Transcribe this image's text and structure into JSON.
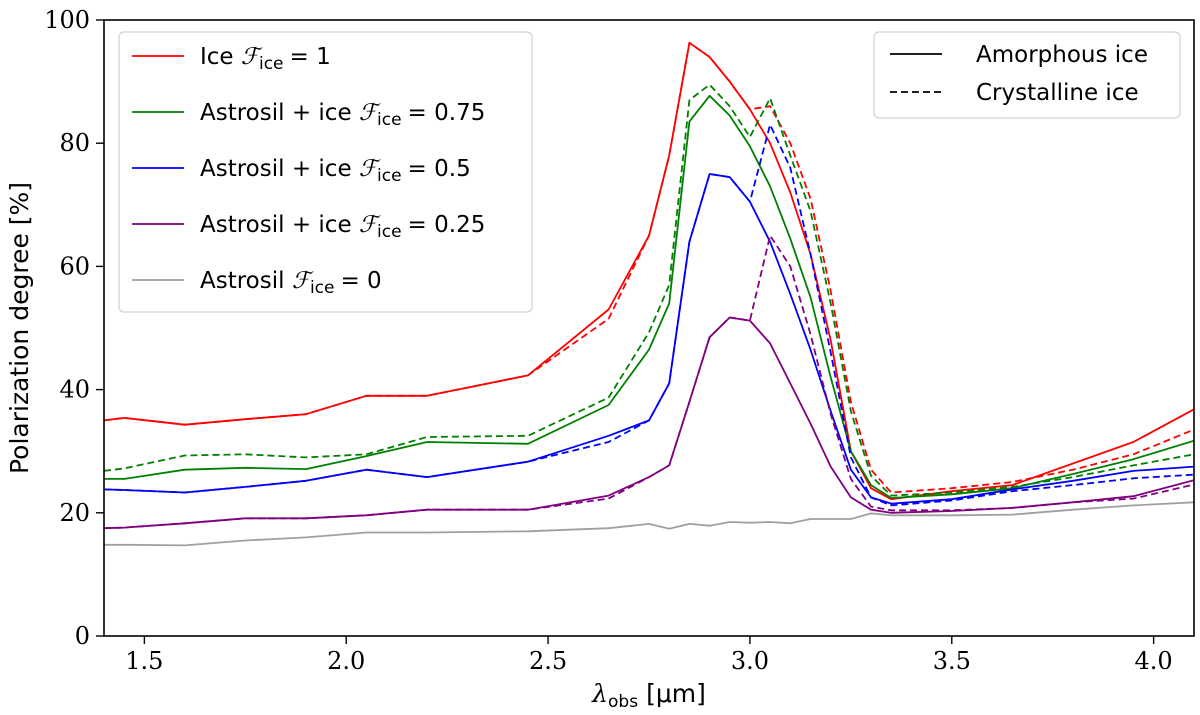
{
  "chart_data": {
    "type": "line",
    "xlabel": {
      "symbol": "λ",
      "sub": "obs",
      "unit": "[μm]"
    },
    "ylabel": "Polarization degree [%]",
    "xlim": [
      1.4,
      4.1
    ],
    "ylim": [
      0,
      100
    ],
    "xticks": [
      1.5,
      2.0,
      2.5,
      3.0,
      3.5,
      4.0
    ],
    "xtick_labels": [
      "1.5",
      "2.0",
      "2.5",
      "3.0",
      "3.5",
      "4.0"
    ],
    "yticks": [
      0,
      20,
      40,
      60,
      80,
      100
    ],
    "ytick_labels": [
      "0",
      "20",
      "40",
      "60",
      "80",
      "100"
    ],
    "style_legend": [
      {
        "label": "Amorphous ice",
        "dash": "solid"
      },
      {
        "label": "Crystalline ice",
        "dash": "dashed"
      }
    ],
    "series": [
      {
        "name": "Ice",
        "legend_prefix": "Ice",
        "legend_value": "= 1",
        "color": "#ff0000",
        "amorphous": {
          "x": [
            1.4,
            1.45,
            1.6,
            1.75,
            1.9,
            2.05,
            2.2,
            2.45,
            2.65,
            2.75,
            2.8,
            2.85,
            2.9,
            2.95,
            3.0,
            3.05,
            3.1,
            3.15,
            3.2,
            3.25,
            3.3,
            3.35,
            3.5,
            3.65,
            3.8,
            3.95,
            4.1
          ],
          "y": [
            35,
            35.4,
            34.3,
            35.2,
            36,
            39,
            39,
            42.3,
            53,
            65,
            78,
            96.3,
            94,
            90,
            85.5,
            80,
            72,
            62,
            48,
            30,
            24,
            22.2,
            23.5,
            24.5,
            28,
            31.5,
            36.8
          ]
        },
        "crystalline": {
          "x": [
            1.4,
            1.45,
            1.6,
            1.75,
            1.9,
            2.05,
            2.2,
            2.45,
            2.65,
            2.75,
            2.8,
            2.85,
            2.9,
            2.95,
            3.0,
            3.05,
            3.1,
            3.15,
            3.2,
            3.25,
            3.3,
            3.35,
            3.5,
            3.65,
            3.8,
            3.95,
            4.1
          ],
          "y": [
            35,
            35.4,
            34.3,
            35.2,
            36,
            39,
            39,
            42.3,
            51.5,
            65,
            78,
            96.3,
            94,
            90,
            85.5,
            86,
            80,
            71,
            56,
            38,
            27,
            23.3,
            24,
            25,
            27,
            29.5,
            33.5
          ]
        }
      },
      {
        "name": "Astrosil + ice 0.75",
        "legend_prefix": "Astrosil + ice",
        "legend_value": "= 0.75",
        "color": "#008000",
        "amorphous": {
          "x": [
            1.4,
            1.45,
            1.6,
            1.75,
            1.9,
            2.05,
            2.2,
            2.45,
            2.65,
            2.75,
            2.8,
            2.85,
            2.9,
            2.95,
            3.0,
            3.05,
            3.1,
            3.15,
            3.2,
            3.25,
            3.3,
            3.35,
            3.5,
            3.65,
            3.8,
            3.95,
            4.1
          ],
          "y": [
            25.5,
            25.5,
            27,
            27.3,
            27.1,
            29.2,
            31.5,
            31.2,
            37.5,
            46.5,
            54,
            83.5,
            87.7,
            84.5,
            79.5,
            73,
            64.5,
            55,
            42,
            30,
            24.5,
            22.4,
            23,
            24,
            26.3,
            28.7,
            31.7
          ]
        },
        "crystalline": {
          "x": [
            1.4,
            1.45,
            1.6,
            1.75,
            1.9,
            2.05,
            2.2,
            2.45,
            2.65,
            2.75,
            2.8,
            2.85,
            2.9,
            2.95,
            3.0,
            3.05,
            3.1,
            3.15,
            3.2,
            3.25,
            3.3,
            3.35,
            3.5,
            3.65,
            3.8,
            3.95,
            4.1
          ],
          "y": [
            26.8,
            27.2,
            29.3,
            29.5,
            29,
            29.5,
            32.3,
            32.5,
            38.7,
            49.3,
            57,
            87,
            89.5,
            86,
            81,
            87.3,
            78,
            69,
            54,
            36.5,
            26,
            22.8,
            23.3,
            24.2,
            25.8,
            27.7,
            29.5
          ]
        }
      },
      {
        "name": "Astrosil + ice 0.5",
        "legend_prefix": "Astrosil + ice",
        "legend_value": "= 0.5",
        "color": "#0000ff",
        "amorphous": {
          "x": [
            1.4,
            1.45,
            1.6,
            1.75,
            1.9,
            2.05,
            2.2,
            2.45,
            2.65,
            2.75,
            2.8,
            2.85,
            2.9,
            2.95,
            3.0,
            3.05,
            3.1,
            3.15,
            3.2,
            3.25,
            3.3,
            3.35,
            3.5,
            3.65,
            3.8,
            3.95,
            4.1
          ],
          "y": [
            23.8,
            23.7,
            23.3,
            24.2,
            25.2,
            27,
            25.8,
            28.3,
            32.5,
            35,
            41,
            64,
            75,
            74.5,
            70.5,
            64,
            55.5,
            46.5,
            36.5,
            27,
            22.5,
            21.5,
            22.2,
            23.8,
            25.2,
            26.8,
            27.5
          ]
        },
        "crystalline": {
          "x": [
            1.4,
            1.45,
            1.6,
            1.75,
            1.9,
            2.05,
            2.2,
            2.45,
            2.65,
            2.75,
            2.8,
            2.85,
            2.9,
            2.95,
            3.0,
            3.05,
            3.1,
            3.15,
            3.2,
            3.25,
            3.3,
            3.35,
            3.5,
            3.65,
            3.8,
            3.95,
            4.1
          ],
          "y": [
            23.8,
            23.7,
            23.3,
            24.2,
            25.2,
            27,
            25.8,
            28.3,
            31.5,
            35,
            41,
            64,
            75,
            74.5,
            70.5,
            83,
            76,
            62,
            46,
            29,
            22.5,
            21.2,
            22,
            23.5,
            24.5,
            25.6,
            26.2
          ]
        }
      },
      {
        "name": "Astrosil + ice 0.25",
        "legend_prefix": "Astrosil + ice",
        "legend_value": "= 0.25",
        "color": "#800080",
        "amorphous": {
          "x": [
            1.4,
            1.45,
            1.6,
            1.75,
            1.9,
            2.05,
            2.2,
            2.45,
            2.65,
            2.75,
            2.8,
            2.85,
            2.9,
            2.95,
            3.0,
            3.05,
            3.1,
            3.15,
            3.2,
            3.25,
            3.3,
            3.35,
            3.5,
            3.65,
            3.8,
            3.95,
            4.1
          ],
          "y": [
            17.5,
            17.6,
            18.3,
            19.1,
            19.1,
            19.6,
            20.5,
            20.5,
            22.8,
            25.8,
            27.7,
            38,
            48.5,
            51.7,
            51.2,
            47.5,
            41,
            34.5,
            27.5,
            22.5,
            20.5,
            20,
            20.3,
            20.8,
            21.7,
            22.7,
            25.3
          ]
        },
        "crystalline": {
          "x": [
            1.4,
            1.45,
            1.6,
            1.75,
            1.9,
            2.05,
            2.2,
            2.45,
            2.65,
            2.75,
            2.8,
            2.85,
            2.9,
            2.95,
            3.0,
            3.05,
            3.1,
            3.15,
            3.2,
            3.25,
            3.3,
            3.35,
            3.5,
            3.65,
            3.8,
            3.95,
            4.1
          ],
          "y": [
            17.5,
            17.6,
            18.3,
            19.1,
            19.1,
            19.6,
            20.5,
            20.5,
            22.3,
            25.8,
            27.7,
            38,
            48.5,
            51.7,
            51.2,
            65,
            60,
            49,
            36,
            25.5,
            21,
            20.4,
            20.4,
            20.8,
            21.7,
            22.3,
            24.6
          ]
        }
      },
      {
        "name": "Astrosil",
        "legend_prefix": "Astrosil",
        "legend_value": "= 0",
        "color": "#a0a0a0",
        "amorphous": {
          "x": [
            1.4,
            1.45,
            1.6,
            1.75,
            1.9,
            2.05,
            2.2,
            2.45,
            2.65,
            2.75,
            2.8,
            2.85,
            2.9,
            2.95,
            3.0,
            3.05,
            3.1,
            3.15,
            3.2,
            3.25,
            3.3,
            3.35,
            3.5,
            3.65,
            3.8,
            3.95,
            4.1
          ],
          "y": [
            14.8,
            14.8,
            14.7,
            15.5,
            16,
            16.8,
            16.8,
            17,
            17.5,
            18.2,
            17.4,
            18.2,
            17.9,
            18.5,
            18.4,
            18.5,
            18.3,
            19,
            19,
            19,
            19.9,
            19.6,
            19.6,
            19.7,
            20.5,
            21.2,
            21.7
          ]
        },
        "crystalline": null
      }
    ]
  }
}
